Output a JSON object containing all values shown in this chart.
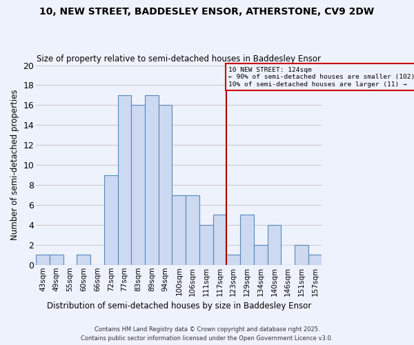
{
  "title": "10, NEW STREET, BADDESLEY ENSOR, ATHERSTONE, CV9 2DW",
  "subtitle": "Size of property relative to semi-detached houses in Baddesley Ensor",
  "xlabel": "Distribution of semi-detached houses by size in Baddesley Ensor",
  "ylabel": "Number of semi-detached properties",
  "categories": [
    "43sqm",
    "49sqm",
    "55sqm",
    "60sqm",
    "66sqm",
    "72sqm",
    "77sqm",
    "83sqm",
    "89sqm",
    "94sqm",
    "100sqm",
    "106sqm",
    "111sqm",
    "117sqm",
    "123sqm",
    "129sqm",
    "134sqm",
    "140sqm",
    "146sqm",
    "151sqm",
    "157sqm"
  ],
  "values": [
    1,
    1,
    0,
    1,
    0,
    9,
    17,
    16,
    17,
    16,
    7,
    7,
    4,
    5,
    1,
    5,
    2,
    4,
    0,
    2,
    1
  ],
  "bar_color": "#ccd9f0",
  "bar_edge_color": "#5588bb",
  "background_color": "#eef2fc",
  "grid_color": "#cccccc",
  "vline_color": "#aa0000",
  "annotation_text": "10 NEW STREET: 124sqm\n← 90% of semi-detached houses are smaller (102)\n10% of semi-detached houses are larger (11) →",
  "annotation_box_edge": "#cc0000",
  "ylim": [
    0,
    20
  ],
  "yticks": [
    0,
    2,
    4,
    6,
    8,
    10,
    12,
    14,
    16,
    18,
    20
  ],
  "footer1": "Contains HM Land Registry data © Crown copyright and database right 2025.",
  "footer2": "Contains public sector information licensed under the Open Government Licence v3.0.",
  "vline_category": "123sqm"
}
